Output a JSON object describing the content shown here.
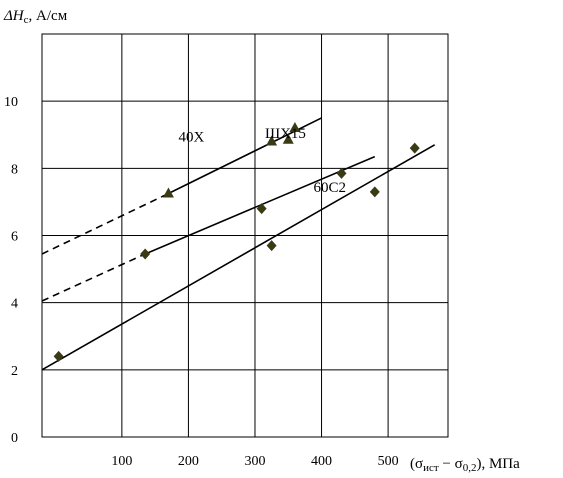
{
  "chart_data": {
    "type": "scatter",
    "title": "",
    "ylabel": "ΔH",
    "ylabel_sub": "c",
    "ylabel_unit": ", А/см",
    "xlabel": "(σ",
    "xlabel_sub1": "ист",
    "xlabel_mid": " − σ",
    "xlabel_sub2": "0,2",
    "xlabel_end": "), МПа",
    "xlim": [
      -20,
      590
    ],
    "ylim": [
      0,
      12
    ],
    "xticks": [
      100,
      200,
      300,
      400,
      500
    ],
    "yticks": [
      0,
      2,
      4,
      6,
      8,
      10
    ],
    "grid": true,
    "series": [
      {
        "name": "40Х",
        "marker": "triangle",
        "points": [
          [
            170,
            7.25
          ],
          [
            325,
            8.8
          ],
          [
            350,
            8.85
          ],
          [
            360,
            9.2
          ]
        ],
        "solid_fit": [
          [
            170,
            7.25
          ],
          [
            400,
            9.5
          ]
        ],
        "dashed_fit": [
          [
            -20,
            5.45
          ],
          [
            170,
            7.25
          ]
        ]
      },
      {
        "name": "ШХ15",
        "marker": "diamond",
        "points": [
          [
            135,
            5.45
          ],
          [
            310,
            6.8
          ],
          [
            430,
            7.85
          ]
        ],
        "solid_fit": [
          [
            135,
            5.45
          ],
          [
            480,
            8.35
          ]
        ],
        "dashed_fit": [
          [
            -20,
            4.05
          ],
          [
            135,
            5.45
          ]
        ]
      },
      {
        "name": "60С2",
        "marker": "diamond",
        "points": [
          [
            5,
            2.4
          ],
          [
            325,
            5.7
          ],
          [
            480,
            7.3
          ],
          [
            540,
            8.6
          ]
        ],
        "solid_fit": [
          [
            -20,
            2.0
          ],
          [
            570,
            8.7
          ]
        ],
        "dashed_fit": []
      }
    ]
  }
}
